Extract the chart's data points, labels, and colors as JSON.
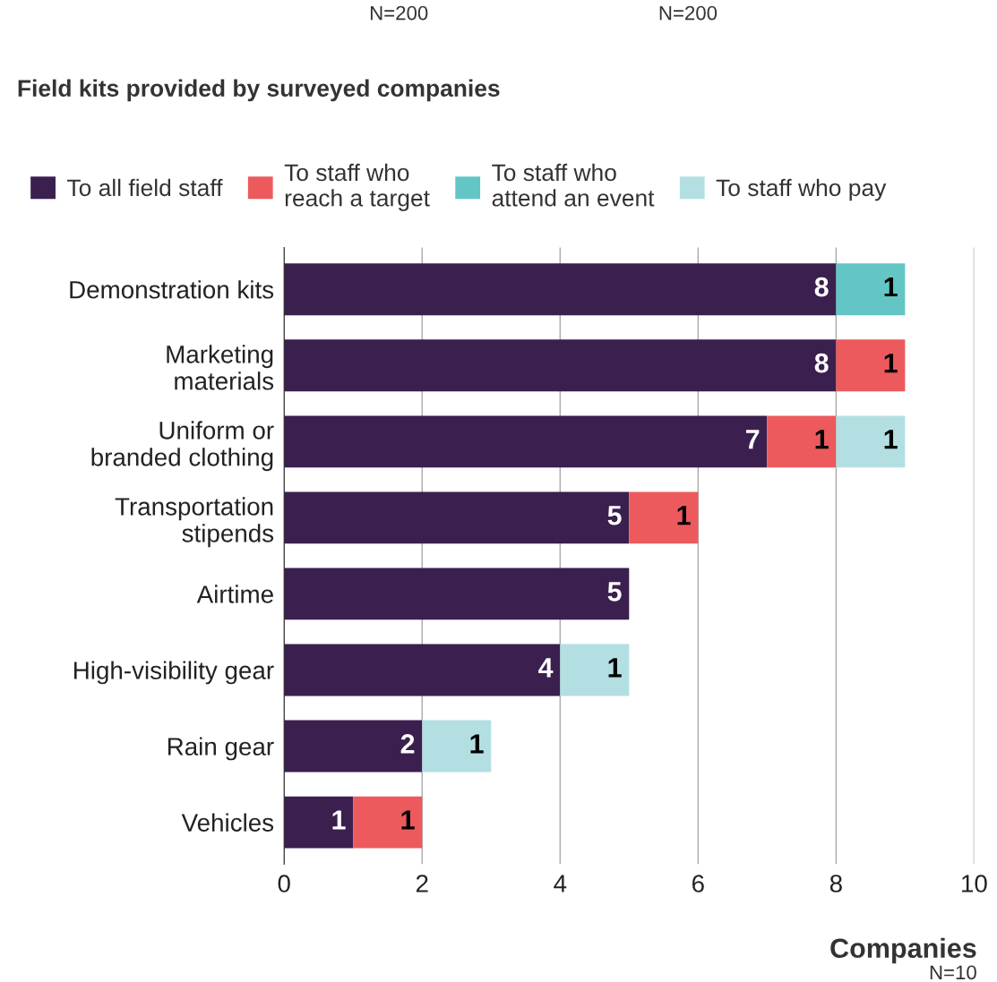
{
  "chart_data": {
    "type": "bar",
    "orientation": "horizontal",
    "stacked": true,
    "title": "Field kits provided by surveyed companies",
    "xlabel": "Companies",
    "categories": [
      "Demonstration kits",
      "Marketing\nmaterials",
      "Uniform or\nbranded clothing",
      "Transportation\nstipends",
      "Airtime",
      "High-visibility gear",
      "Rain gear",
      "Vehicles"
    ],
    "series": [
      {
        "name": "To all field staff",
        "color": "#3b1f4f",
        "values": [
          8,
          8,
          7,
          5,
          5,
          4,
          2,
          1
        ]
      },
      {
        "name": "To staff who\nreach a target",
        "color": "#ec5a5d",
        "values": [
          null,
          1,
          1,
          1,
          null,
          null,
          null,
          1
        ]
      },
      {
        "name": "To staff who\nattend an event",
        "color": "#63c6c5",
        "values": [
          1,
          null,
          null,
          null,
          null,
          null,
          null,
          null
        ]
      },
      {
        "name": "To staff who pay",
        "color": "#b3dfe3",
        "values": [
          null,
          null,
          1,
          null,
          null,
          1,
          1,
          null
        ]
      }
    ],
    "xlim": [
      0,
      10
    ],
    "xticks": [
      0,
      2,
      4,
      6,
      8,
      10
    ],
    "grid": "x",
    "legend": "top",
    "data_labels": true,
    "annotations": [
      "N=200",
      "N=200",
      "N=10"
    ]
  }
}
